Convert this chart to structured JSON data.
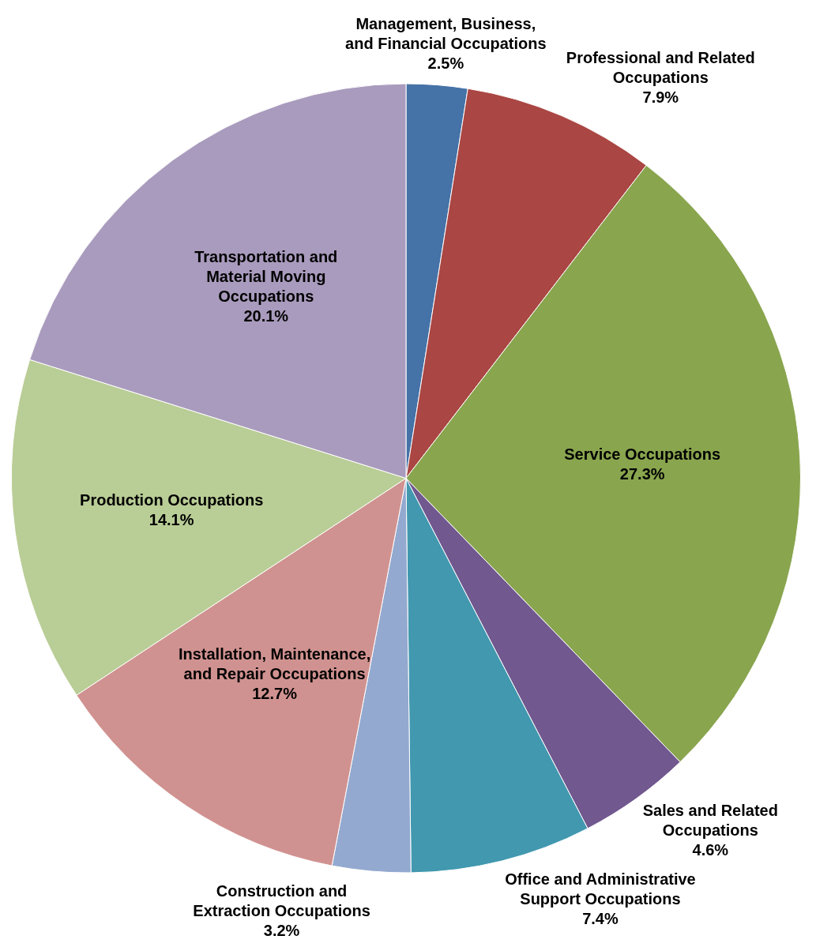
{
  "chart_data": {
    "type": "pie",
    "categories": [
      "Management, Business, and Financial Occupations",
      "Professional and Related Occupations",
      "Service Occupations",
      "Sales and Related Occupations",
      "Office and Administrative Support Occupations",
      "Construction and Extraction Occupations",
      "Installation, Maintenance, and Repair Occupations",
      "Production Occupations",
      "Transportation and Material Moving Occupations"
    ],
    "values": [
      2.5,
      7.9,
      27.3,
      4.6,
      7.4,
      3.2,
      12.7,
      14.1,
      20.1
    ],
    "colors": [
      "#4572a7",
      "#aa4643",
      "#89a54e",
      "#71588f",
      "#4198af",
      "#93a9cf",
      "#d09290",
      "#b9cd96",
      "#a99bbd"
    ],
    "value_labels": [
      "2.5%",
      "7.9%",
      "27.3%",
      "4.6%",
      "7.4%",
      "3.2%",
      "12.7%",
      "14.1%",
      "20.1%"
    ],
    "legend": false
  }
}
